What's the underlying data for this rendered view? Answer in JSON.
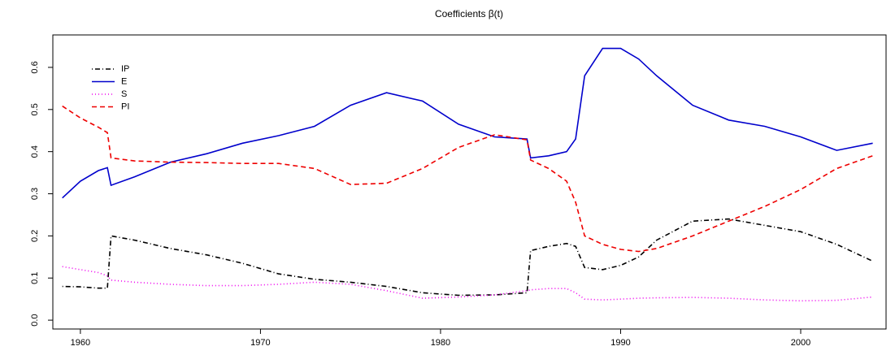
{
  "chart_data": {
    "type": "line",
    "title": "Coefficients β(t)",
    "x": [
      1959,
      1960,
      1961,
      1961.5,
      1961.7,
      1963,
      1965,
      1967,
      1969,
      1971,
      1973,
      1975,
      1977,
      1979,
      1981,
      1983,
      1984.8,
      1985,
      1986,
      1987,
      1987.5,
      1988,
      1989,
      1990,
      1991,
      1992,
      1994,
      1996,
      1998,
      2000,
      2002,
      2004
    ],
    "series": [
      {
        "name": "IP",
        "color": "#000000",
        "linestyle": "dashdot",
        "values": [
          0.08,
          0.079,
          0.076,
          0.076,
          0.2,
          0.19,
          0.17,
          0.155,
          0.135,
          0.11,
          0.097,
          0.09,
          0.08,
          0.065,
          0.059,
          0.06,
          0.065,
          0.165,
          0.175,
          0.182,
          0.175,
          0.125,
          0.12,
          0.13,
          0.15,
          0.19,
          0.235,
          0.24,
          0.225,
          0.21,
          0.18,
          0.14
        ]
      },
      {
        "name": "E",
        "color": "#0000cc",
        "linestyle": "solid",
        "values": [
          0.29,
          0.33,
          0.355,
          0.362,
          0.32,
          0.34,
          0.375,
          0.395,
          0.42,
          0.438,
          0.46,
          0.51,
          0.54,
          0.52,
          0.465,
          0.435,
          0.43,
          0.385,
          0.39,
          0.4,
          0.43,
          0.58,
          0.645,
          0.645,
          0.62,
          0.58,
          0.51,
          0.475,
          0.46,
          0.435,
          0.403,
          0.42
        ]
      },
      {
        "name": "S",
        "color": "#ee00ee",
        "linestyle": "dotted",
        "values": [
          0.127,
          0.12,
          0.113,
          0.105,
          0.095,
          0.09,
          0.085,
          0.082,
          0.082,
          0.085,
          0.09,
          0.085,
          0.07,
          0.052,
          0.055,
          0.06,
          0.07,
          0.072,
          0.075,
          0.075,
          0.065,
          0.05,
          0.048,
          0.05,
          0.052,
          0.053,
          0.054,
          0.052,
          0.048,
          0.046,
          0.047,
          0.055
        ]
      },
      {
        "name": "PI",
        "color": "#ee0000",
        "linestyle": "dashed",
        "values": [
          0.508,
          0.48,
          0.458,
          0.445,
          0.385,
          0.378,
          0.375,
          0.374,
          0.372,
          0.372,
          0.36,
          0.322,
          0.325,
          0.36,
          0.41,
          0.44,
          0.428,
          0.38,
          0.36,
          0.33,
          0.28,
          0.2,
          0.18,
          0.168,
          0.163,
          0.17,
          0.2,
          0.235,
          0.27,
          0.31,
          0.36,
          0.39
        ]
      }
    ],
    "xlim": [
      1958.47,
      2004.74
    ],
    "xticks": [
      1960,
      1970,
      1980,
      1990,
      2000
    ],
    "ylim": [
      -0.021,
      0.677
    ],
    "yticks": [
      {
        "value": 0,
        "label": "0.0"
      },
      0.1,
      0.2,
      0.3,
      0.4,
      0.5,
      0.6
    ],
    "legend": "top-left"
  }
}
